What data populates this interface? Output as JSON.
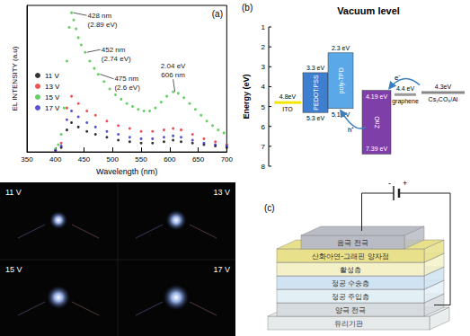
{
  "chart_data": {
    "type": "scatter",
    "panel_label": "(a)",
    "xlabel": "Wavelength (nm)",
    "ylabel": "EL INTENSITY (a.u)",
    "xlim": [
      350,
      700
    ],
    "xticks": [
      350,
      400,
      450,
      500,
      550,
      600,
      650,
      700
    ],
    "ylim": [
      0,
      1
    ],
    "tick_labels": "x",
    "grid": false,
    "legend": "left",
    "marker": "circle",
    "series": [
      {
        "name": "11 V",
        "color": "#000000",
        "x": [
          400,
          410,
          420,
          428,
          440,
          455,
          470,
          490,
          510,
          530,
          550,
          570,
          590,
          606,
          620,
          640,
          660,
          680,
          700
        ],
        "values": [
          0.01,
          0.03,
          0.15,
          0.2,
          0.17,
          0.14,
          0.12,
          0.1,
          0.08,
          0.07,
          0.06,
          0.06,
          0.07,
          0.08,
          0.07,
          0.06,
          0.05,
          0.04,
          0.03
        ]
      },
      {
        "name": "13 V",
        "color": "#e8262a",
        "x": [
          400,
          410,
          420,
          428,
          440,
          455,
          470,
          490,
          510,
          530,
          550,
          570,
          590,
          606,
          620,
          640,
          660,
          680,
          700
        ],
        "values": [
          0.01,
          0.06,
          0.3,
          0.38,
          0.33,
          0.28,
          0.25,
          0.21,
          0.18,
          0.16,
          0.14,
          0.14,
          0.15,
          0.16,
          0.15,
          0.12,
          0.09,
          0.07,
          0.05
        ]
      },
      {
        "name": "15 V",
        "color": "#3fc43f",
        "x": [
          400,
          405,
          410,
          415,
          420,
          424,
          428,
          432,
          436,
          440,
          445,
          452,
          460,
          468,
          475,
          485,
          495,
          505,
          515,
          525,
          535,
          545,
          555,
          565,
          575,
          585,
          595,
          606,
          615,
          625,
          635,
          645,
          655,
          665,
          675,
          685,
          695
        ],
        "values": [
          0.02,
          0.05,
          0.12,
          0.3,
          0.62,
          0.85,
          0.95,
          0.9,
          0.84,
          0.78,
          0.73,
          0.68,
          0.62,
          0.57,
          0.53,
          0.48,
          0.43,
          0.39,
          0.36,
          0.33,
          0.31,
          0.29,
          0.28,
          0.28,
          0.3,
          0.34,
          0.38,
          0.41,
          0.4,
          0.37,
          0.33,
          0.29,
          0.25,
          0.21,
          0.18,
          0.15,
          0.13
        ]
      },
      {
        "name": "17 V",
        "color": "#2b2bc8",
        "x": [
          400,
          410,
          420,
          428,
          440,
          455,
          470,
          490,
          510,
          530,
          550,
          570,
          590,
          606,
          620,
          640,
          660,
          680,
          700
        ],
        "values": [
          0.01,
          0.04,
          0.22,
          0.28,
          0.24,
          0.2,
          0.17,
          0.14,
          0.12,
          0.1,
          0.09,
          0.09,
          0.1,
          0.11,
          0.1,
          0.08,
          0.06,
          0.05,
          0.04
        ]
      }
    ],
    "annotations": [
      {
        "text": [
          "428 nm",
          "(2.89 eV)"
        ],
        "x": 428,
        "series": "15 V"
      },
      {
        "text": [
          "452 nm",
          "(2.74 eV)"
        ],
        "x": 452,
        "series": "15 V"
      },
      {
        "text": [
          "475 nm",
          "(2.6 eV)"
        ],
        "x": 475,
        "series": "15 V"
      },
      {
        "text": [
          "2.04 eV",
          "606 nm"
        ],
        "x": 606,
        "series": "15 V"
      }
    ]
  },
  "photos": {
    "labels": [
      "11 V",
      "13 V",
      "15 V",
      "17 V"
    ]
  },
  "band_diagram": {
    "panel_label": "(b)",
    "title": "Vacuum level",
    "ylabel": "Energy (eV)",
    "ylim": [
      1,
      8
    ],
    "yticks": [
      1,
      2,
      3,
      4,
      5,
      6,
      7,
      8
    ],
    "layers": [
      {
        "name": "ITO",
        "kind": "line",
        "level": 4.8,
        "label": "4.8eV",
        "color": "#f2e600"
      },
      {
        "name": "PEDOT:PSS",
        "kind": "box",
        "top": 3.3,
        "bottom": 5.3,
        "top_label": "3.3 eV",
        "bottom_label": "5.3 eV",
        "color": "#3f7fd0"
      },
      {
        "name": "poly-TPD",
        "kind": "box",
        "top": 2.3,
        "bottom": 5.1,
        "top_label": "2.3 eV",
        "bottom_label": "5.1 eV",
        "color": "#5aa8e8"
      },
      {
        "name": "ZnO",
        "kind": "box",
        "top": 4.19,
        "bottom": 7.39,
        "top_label": "4.19 eV",
        "bottom_label": "7.39 eV",
        "color": "#7f3fa8"
      },
      {
        "name": "graphene",
        "kind": "line",
        "level": 4.4,
        "label": "4.4 eV",
        "color": "#9a9a9a"
      },
      {
        "name": "Cs₂CO₃/Al",
        "kind": "line",
        "level": 4.3,
        "label": "4.3eV",
        "color": "#888888"
      }
    ],
    "carriers": [
      "e⁻",
      "h⁺"
    ]
  },
  "device_schematic": {
    "panel_label": "(c)",
    "layers": [
      "음극 전극",
      "산화아연-그래핀 양자점",
      "활성층",
      "정공 수송층",
      "정공 주입층",
      "양극 전극",
      "유리기판"
    ],
    "battery": [
      "-",
      "+"
    ]
  }
}
